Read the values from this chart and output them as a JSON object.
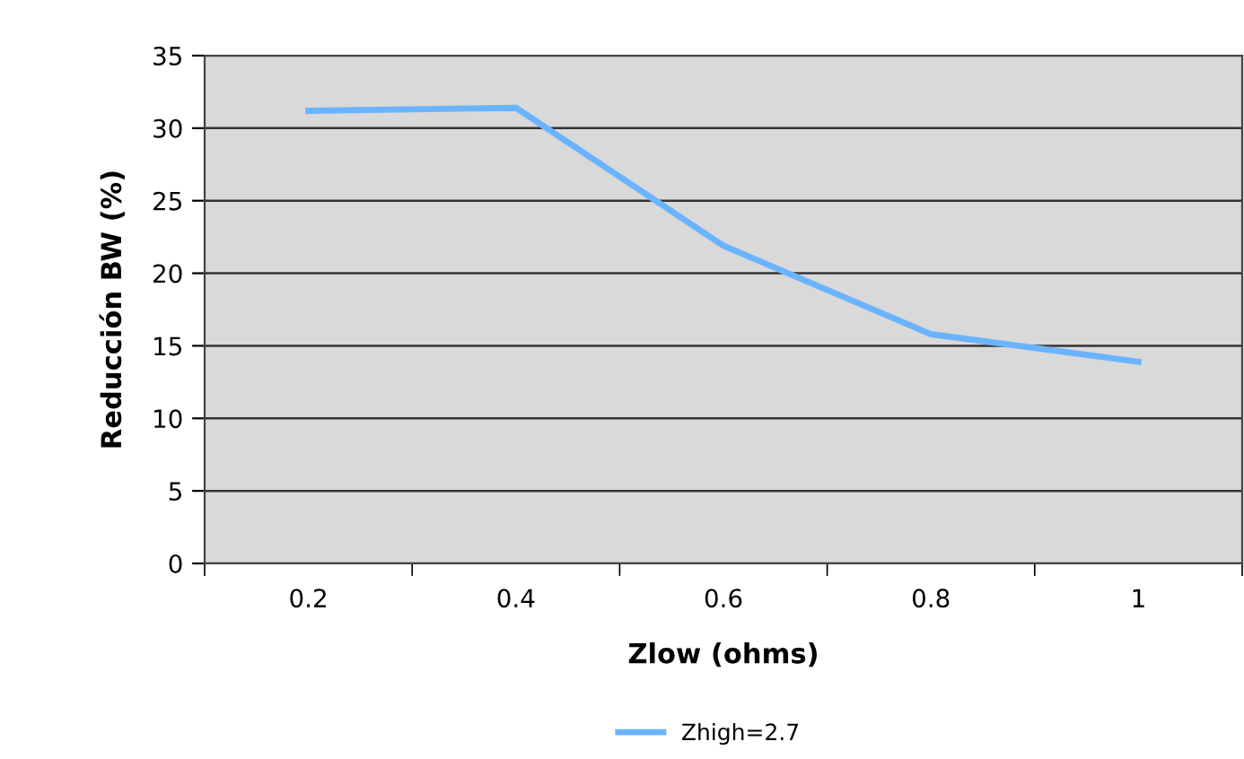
{
  "chart_data": {
    "type": "line",
    "xlabel": "Zlow (ohms)",
    "ylabel": "Reducción BW (%)",
    "categories": [
      "0.2",
      "0.4",
      "0.6",
      "0.8",
      "1"
    ],
    "series": [
      {
        "name": "Zhigh=2.7",
        "color": "#6ab4ff",
        "values": [
          31.2,
          31.4,
          21.9,
          15.8,
          13.9
        ]
      }
    ],
    "ylim": [
      0,
      35
    ],
    "yticks": [
      0,
      5,
      10,
      15,
      20,
      25,
      30,
      35
    ],
    "grid": "y",
    "legend": "bottom",
    "marker": "none",
    "line_style": "solid"
  }
}
